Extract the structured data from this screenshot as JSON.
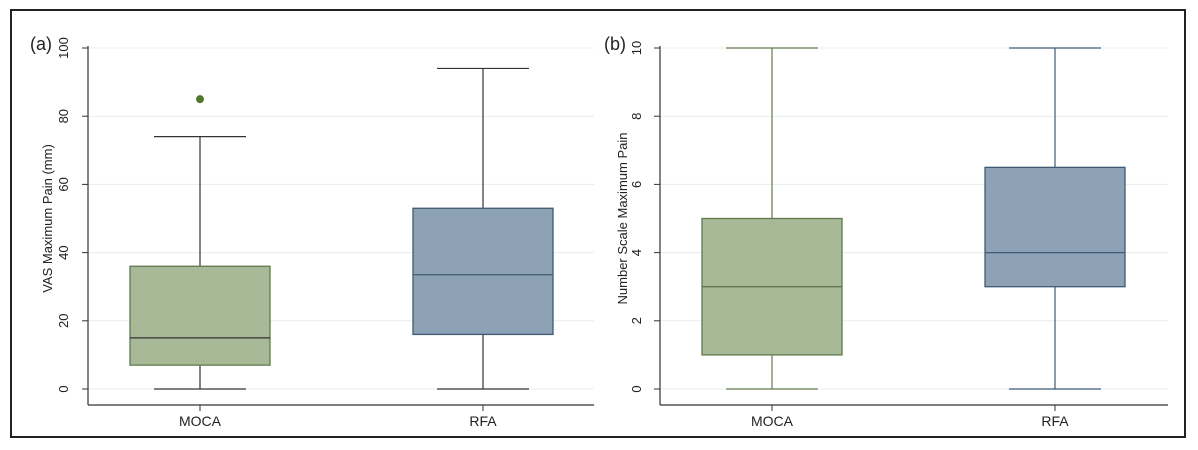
{
  "chart_data": [
    {
      "type": "box",
      "panel_label": "(a)",
      "categories": [
        "MOCA",
        "RFA"
      ],
      "ylabel": "VAS Maximum Pain (mm)",
      "xlabel": "",
      "ylim": [
        0,
        100
      ],
      "yticks": [
        0,
        20,
        40,
        60,
        80,
        100
      ],
      "grid": true,
      "boxes": [
        {
          "category": "MOCA",
          "min": 0,
          "q1": 7,
          "median": 15,
          "q3": 36,
          "max": 74,
          "outliers": [
            85
          ],
          "color": "#a7b996"
        },
        {
          "category": "RFA",
          "min": 0,
          "q1": 16,
          "median": 33.5,
          "q3": 53,
          "max": 94,
          "outliers": [],
          "color": "#8ea2b6"
        }
      ]
    },
    {
      "type": "box",
      "panel_label": "(b)",
      "categories": [
        "MOCA",
        "RFA"
      ],
      "ylabel": "Number Scale Maximum Pain",
      "xlabel": "",
      "ylim": [
        0,
        10
      ],
      "yticks": [
        0,
        2,
        4,
        6,
        8,
        10
      ],
      "grid": true,
      "boxes": [
        {
          "category": "MOCA",
          "min": 0,
          "q1": 1,
          "median": 3,
          "q3": 5,
          "max": 10,
          "outliers": [],
          "color": "#a7b996"
        },
        {
          "category": "RFA",
          "min": 0,
          "q1": 3,
          "median": 4,
          "q3": 6.5,
          "max": 10,
          "outliers": [],
          "color": "#8ea2b6"
        }
      ]
    }
  ],
  "colors": {
    "moca_fill": "#a7b996",
    "moca_stroke": "#5f7a4e",
    "rfa_fill": "#8ea2b6",
    "rfa_stroke": "#3f5a74",
    "outlier": "#4f7a2e",
    "grid": "#e8ecef",
    "axis": "#333333"
  }
}
